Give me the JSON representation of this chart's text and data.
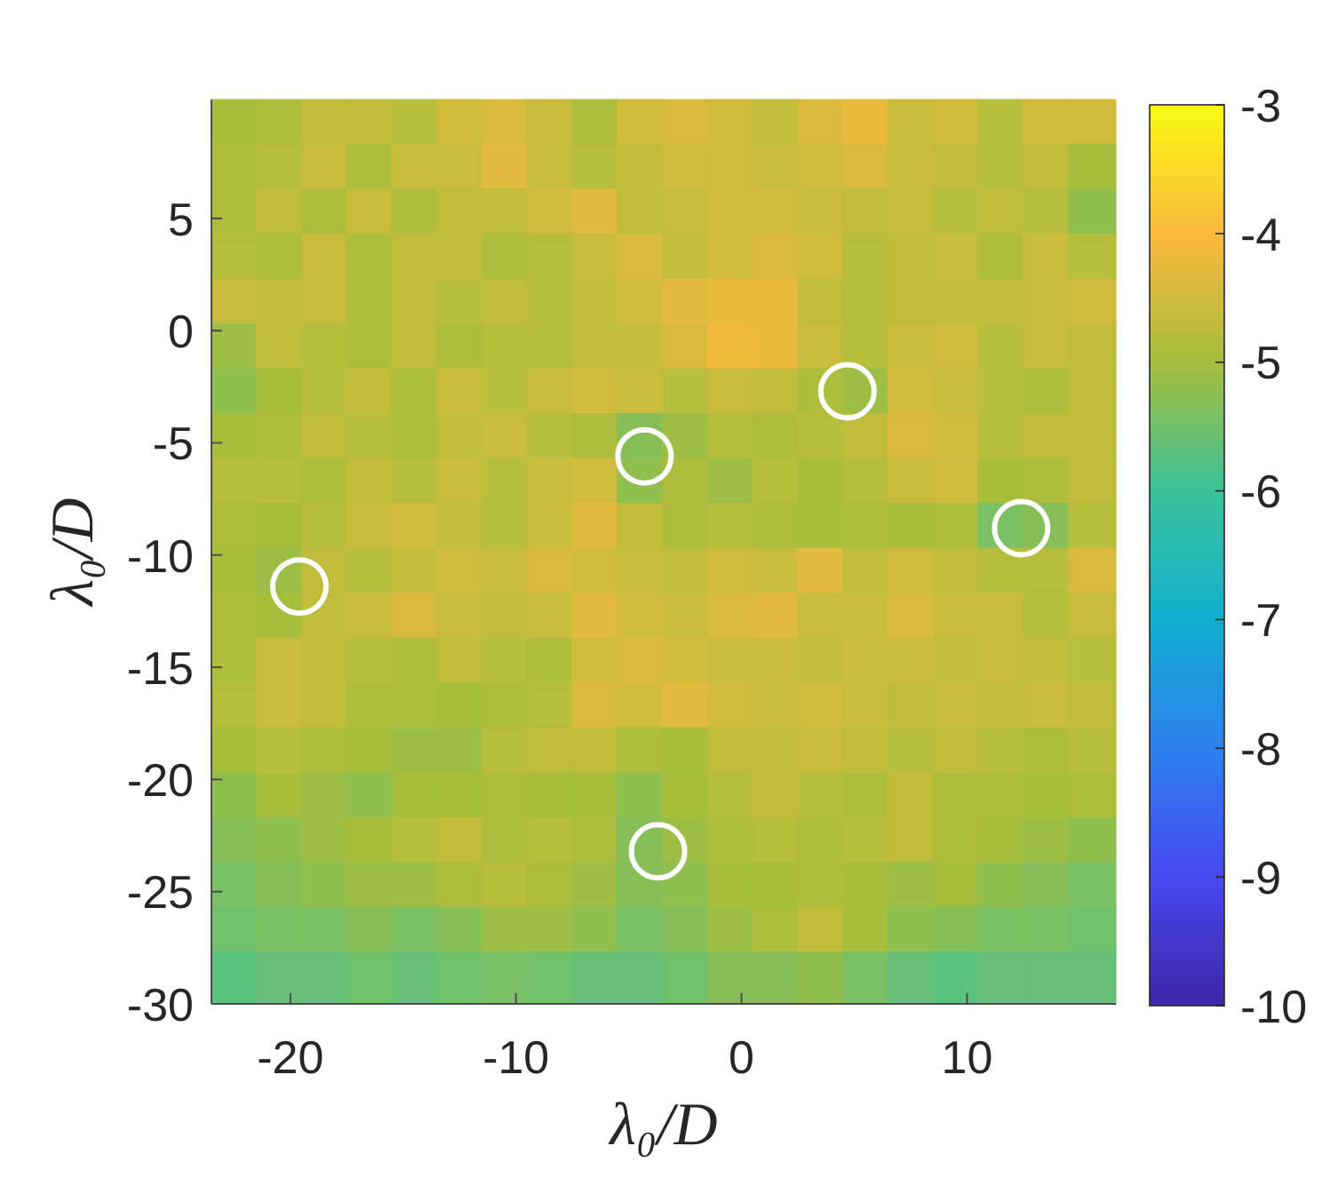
{
  "chart_data": {
    "type": "heatmap",
    "xlabel": "λ₀/D",
    "ylabel": "λ₀/D",
    "x": [
      -22.5,
      -20.5,
      -18.5,
      -16.5,
      -14.5,
      -12.5,
      -10.5,
      -8.5,
      -6.5,
      -4.5,
      -2.5,
      -0.5,
      1.5,
      3.5,
      5.5,
      7.5,
      9.5,
      11.5,
      13.5,
      15.5
    ],
    "y": [
      9.3,
      7.3,
      5.3,
      3.3,
      1.3,
      -0.7,
      -2.7,
      -4.7,
      -6.7,
      -8.7,
      -10.7,
      -12.7,
      -14.7,
      -16.7,
      -18.7,
      -20.7,
      -22.7,
      -24.7,
      -26.7,
      -28.7
    ],
    "cells": [
      [
        -5.0,
        -4.9,
        -4.7,
        -4.7,
        -4.8,
        -4.5,
        -4.4,
        -4.6,
        -4.9,
        -4.5,
        -4.4,
        -4.5,
        -4.7,
        -4.4,
        -4.2,
        -4.6,
        -4.5,
        -4.8,
        -4.5,
        -4.5
      ],
      [
        -4.9,
        -4.8,
        -4.6,
        -4.9,
        -4.6,
        -4.6,
        -4.3,
        -4.6,
        -4.8,
        -4.7,
        -4.5,
        -4.5,
        -4.6,
        -4.5,
        -4.4,
        -4.6,
        -4.7,
        -4.8,
        -4.7,
        -5.0
      ],
      [
        -4.9,
        -4.7,
        -4.9,
        -4.6,
        -4.9,
        -4.7,
        -4.7,
        -4.5,
        -4.3,
        -4.7,
        -4.6,
        -4.5,
        -4.5,
        -4.6,
        -4.7,
        -4.6,
        -4.8,
        -4.7,
        -4.8,
        -5.2
      ],
      [
        -4.8,
        -4.9,
        -4.6,
        -4.9,
        -4.7,
        -4.7,
        -4.9,
        -4.8,
        -4.6,
        -4.4,
        -4.7,
        -4.5,
        -4.4,
        -4.5,
        -4.8,
        -4.7,
        -4.6,
        -4.9,
        -4.6,
        -4.8
      ],
      [
        -4.6,
        -4.7,
        -4.6,
        -4.9,
        -4.7,
        -4.8,
        -4.7,
        -4.8,
        -4.7,
        -4.5,
        -4.3,
        -4.2,
        -4.2,
        -4.7,
        -4.8,
        -4.7,
        -4.7,
        -4.7,
        -4.6,
        -4.5
      ],
      [
        -5.1,
        -4.7,
        -4.8,
        -4.9,
        -4.7,
        -4.9,
        -4.8,
        -4.8,
        -4.7,
        -4.7,
        -4.4,
        -4.1,
        -4.2,
        -4.6,
        -4.8,
        -4.6,
        -4.5,
        -4.8,
        -4.6,
        -4.7
      ],
      [
        -5.2,
        -5.0,
        -4.8,
        -4.7,
        -4.9,
        -4.6,
        -4.8,
        -4.6,
        -4.5,
        -4.6,
        -4.8,
        -4.6,
        -4.7,
        -4.9,
        -5.1,
        -4.5,
        -4.6,
        -4.8,
        -4.9,
        -4.7
      ],
      [
        -5.0,
        -4.9,
        -4.7,
        -4.8,
        -4.9,
        -4.7,
        -4.6,
        -4.8,
        -4.9,
        -5.3,
        -5.1,
        -4.8,
        -4.9,
        -4.8,
        -4.7,
        -4.4,
        -4.5,
        -4.8,
        -4.7,
        -4.7
      ],
      [
        -4.8,
        -4.8,
        -4.9,
        -4.7,
        -4.8,
        -4.6,
        -4.8,
        -4.6,
        -4.5,
        -5.2,
        -4.9,
        -5.1,
        -4.8,
        -5.0,
        -4.8,
        -4.6,
        -4.5,
        -5.0,
        -4.9,
        -4.7
      ],
      [
        -4.9,
        -5.0,
        -4.8,
        -4.6,
        -4.5,
        -4.7,
        -4.8,
        -4.6,
        -4.3,
        -4.7,
        -4.9,
        -4.8,
        -4.9,
        -5.0,
        -4.9,
        -5.0,
        -4.9,
        -5.4,
        -5.3,
        -4.8
      ],
      [
        -5.0,
        -5.1,
        -4.7,
        -4.8,
        -4.7,
        -4.5,
        -4.6,
        -4.4,
        -4.5,
        -4.6,
        -4.7,
        -4.5,
        -4.6,
        -4.3,
        -4.7,
        -4.5,
        -4.7,
        -4.8,
        -4.8,
        -4.4
      ],
      [
        -4.9,
        -5.0,
        -4.7,
        -4.6,
        -4.4,
        -4.6,
        -4.7,
        -4.6,
        -4.3,
        -4.5,
        -4.6,
        -4.4,
        -4.3,
        -4.6,
        -4.6,
        -4.4,
        -4.6,
        -4.6,
        -4.8,
        -4.6
      ],
      [
        -4.9,
        -4.6,
        -4.7,
        -4.8,
        -4.9,
        -4.7,
        -4.8,
        -4.9,
        -4.5,
        -4.4,
        -4.5,
        -4.6,
        -4.6,
        -4.7,
        -4.6,
        -4.6,
        -4.7,
        -4.6,
        -4.7,
        -4.8
      ],
      [
        -4.8,
        -4.6,
        -4.7,
        -4.9,
        -4.9,
        -5.0,
        -4.9,
        -4.8,
        -4.4,
        -4.5,
        -4.3,
        -4.5,
        -4.6,
        -4.5,
        -4.6,
        -4.7,
        -4.6,
        -4.7,
        -4.6,
        -4.7
      ],
      [
        -5.0,
        -4.8,
        -4.9,
        -5.0,
        -5.1,
        -5.1,
        -4.8,
        -4.7,
        -4.7,
        -4.9,
        -5.0,
        -4.7,
        -4.7,
        -4.6,
        -4.7,
        -4.8,
        -4.7,
        -4.8,
        -4.9,
        -4.8
      ],
      [
        -5.2,
        -5.0,
        -5.1,
        -5.2,
        -5.0,
        -5.0,
        -4.9,
        -5.0,
        -5.0,
        -5.2,
        -5.0,
        -4.8,
        -4.7,
        -4.8,
        -4.9,
        -4.7,
        -4.9,
        -4.9,
        -5.0,
        -4.9
      ],
      [
        -5.3,
        -5.2,
        -5.1,
        -5.0,
        -4.8,
        -4.7,
        -4.9,
        -4.8,
        -4.9,
        -5.3,
        -5.1,
        -4.9,
        -4.8,
        -4.9,
        -4.8,
        -4.7,
        -4.9,
        -5.0,
        -5.1,
        -5.2
      ],
      [
        -5.4,
        -5.3,
        -5.2,
        -5.1,
        -5.1,
        -4.9,
        -4.8,
        -4.9,
        -5.1,
        -5.3,
        -5.2,
        -5.0,
        -5.0,
        -4.9,
        -5.0,
        -5.1,
        -5.0,
        -5.2,
        -5.3,
        -5.4
      ],
      [
        -5.5,
        -5.4,
        -5.4,
        -5.3,
        -5.4,
        -5.3,
        -5.1,
        -5.1,
        -5.2,
        -5.4,
        -5.3,
        -5.1,
        -4.9,
        -4.7,
        -5.0,
        -5.2,
        -5.3,
        -5.4,
        -5.4,
        -5.5
      ],
      [
        -5.7,
        -5.6,
        -5.6,
        -5.5,
        -5.6,
        -5.5,
        -5.4,
        -5.5,
        -5.6,
        -5.6,
        -5.5,
        -5.3,
        -5.3,
        -5.2,
        -5.4,
        -5.6,
        -5.7,
        -5.6,
        -5.6,
        -5.6
      ]
    ],
    "clim": [
      -10,
      -3
    ],
    "cticks": [
      -3,
      -4,
      -5,
      -6,
      -7,
      -8,
      -9,
      -10
    ],
    "xlim": [
      -23.5,
      16.6
    ],
    "xticks": [
      -20,
      -10,
      0,
      10
    ],
    "ylim": [
      -30,
      10.3
    ],
    "yticks": [
      -30,
      -25,
      -20,
      -15,
      -10,
      -5,
      0,
      5
    ],
    "series": [
      {
        "type": "scatter",
        "marker": "circle",
        "color": "#ffffff",
        "x": [
          -19.6,
          -4.3,
          4.7,
          12.4,
          -3.7
        ],
        "values": [
          -11.4,
          -5.6,
          -2.7,
          -8.8,
          -23.2
        ]
      }
    ]
  }
}
